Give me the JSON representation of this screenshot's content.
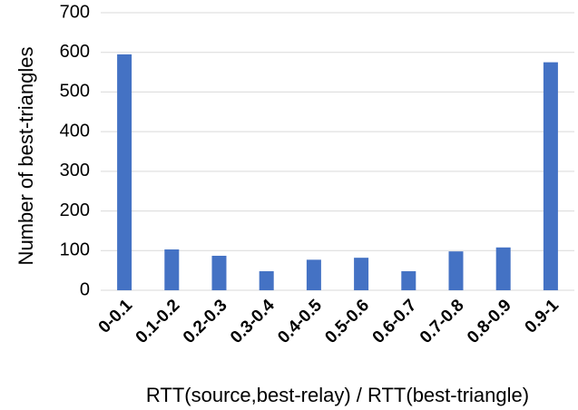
{
  "chart_data": {
    "type": "bar",
    "x_label": "RTT(source,best-relay) / RTT(best-triangle)",
    "y_label": "Number of best-triangles",
    "categories": [
      "0-0.1",
      "0.1-0.2",
      "0.2-0.3",
      "0.3-0.4",
      "0.4-0.5",
      "0.5-0.6",
      "0.6-0.7",
      "0.7-0.8",
      "0.8-0.9",
      "0.9-1"
    ],
    "values": [
      595,
      103,
      87,
      48,
      77,
      82,
      48,
      98,
      108,
      575
    ],
    "color": "#4472c4",
    "ylim": [
      0,
      700
    ],
    "yticks": [
      0,
      100,
      200,
      300,
      400,
      500,
      600,
      700
    ],
    "grid": true
  }
}
